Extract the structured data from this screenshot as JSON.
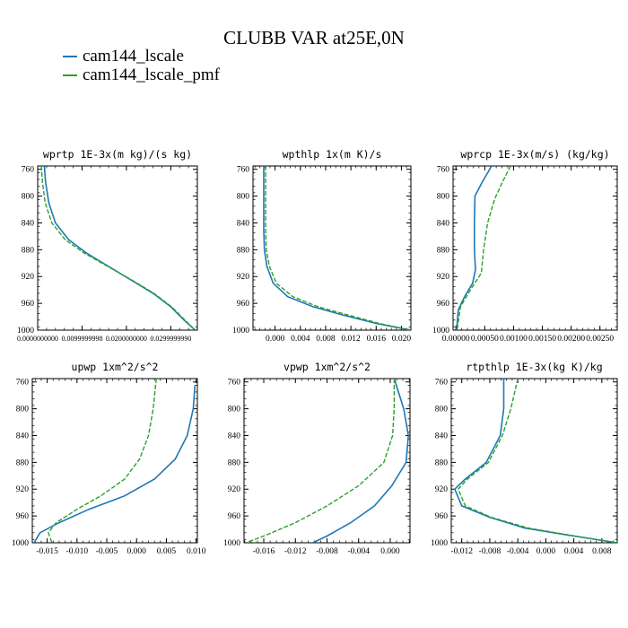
{
  "title": "CLUBB VAR at25E,0N",
  "legend": [
    {
      "name": "cam144_lscale",
      "color": "#1f77b4"
    },
    {
      "name": "cam144_lscale_pmf",
      "color": "#2ca02c"
    }
  ],
  "chart_data": [
    {
      "type": "line",
      "title": "wprtp  1E-3x(m kg)/(s kg)",
      "ylabel": "",
      "ylim": [
        1000,
        755
      ],
      "yticks": [
        760,
        800,
        840,
        880,
        920,
        960,
        1000
      ],
      "xlim": [
        0.0,
        0.036
      ],
      "xticks": [
        0.0,
        0.01,
        0.02,
        0.03
      ],
      "xticklabels": [
        "0.0000000000",
        "0.0099999998",
        "0.0200000000",
        "0.0299999990"
      ],
      "series": [
        {
          "name": "cam144_lscale",
          "points": [
            [
              0.0015,
              755
            ],
            [
              0.0018,
              780
            ],
            [
              0.0025,
              810
            ],
            [
              0.004,
              840
            ],
            [
              0.007,
              865
            ],
            [
              0.011,
              885
            ],
            [
              0.016,
              905
            ],
            [
              0.021,
              925
            ],
            [
              0.026,
              945
            ],
            [
              0.03,
              965
            ],
            [
              0.033,
              985
            ],
            [
              0.0355,
              1000
            ]
          ]
        },
        {
          "name": "cam144_lscale_pmf",
          "points": [
            [
              0.0008,
              755
            ],
            [
              0.0011,
              780
            ],
            [
              0.0017,
              810
            ],
            [
              0.0032,
              840
            ],
            [
              0.0062,
              865
            ],
            [
              0.0105,
              885
            ],
            [
              0.0158,
              905
            ],
            [
              0.0212,
              925
            ],
            [
              0.0262,
              945
            ],
            [
              0.0302,
              965
            ],
            [
              0.0332,
              985
            ],
            [
              0.0355,
              1000
            ]
          ]
        }
      ]
    },
    {
      "type": "line",
      "title": "wpthlp  1x(m K)/s",
      "ylabel": "",
      "ylim": [
        1000,
        755
      ],
      "yticks": [
        760,
        800,
        840,
        880,
        920,
        960,
        1000
      ],
      "xlim": [
        -0.0035,
        0.0215
      ],
      "xticks": [
        0.0,
        0.004,
        0.008,
        0.012,
        0.016,
        0.02
      ],
      "xticklabels": [
        "0.000",
        "0.004",
        "0.008",
        "0.012",
        "0.016",
        "0.020"
      ],
      "series": [
        {
          "name": "cam144_lscale",
          "points": [
            [
              -0.0018,
              755
            ],
            [
              -0.0018,
              800
            ],
            [
              -0.0018,
              850
            ],
            [
              -0.0017,
              880
            ],
            [
              -0.0013,
              905
            ],
            [
              -0.0003,
              930
            ],
            [
              0.002,
              950
            ],
            [
              0.006,
              965
            ],
            [
              0.011,
              978
            ],
            [
              0.016,
              990
            ],
            [
              0.0215,
              1000
            ]
          ]
        },
        {
          "name": "cam144_lscale_pmf",
          "points": [
            [
              -0.0015,
              755
            ],
            [
              -0.0015,
              800
            ],
            [
              -0.0015,
              850
            ],
            [
              -0.0014,
              880
            ],
            [
              -0.0009,
              905
            ],
            [
              0.0002,
              930
            ],
            [
              0.0028,
              950
            ],
            [
              0.0068,
              965
            ],
            [
              0.0118,
              978
            ],
            [
              0.0165,
              990
            ],
            [
              0.0215,
              1000
            ]
          ]
        }
      ]
    },
    {
      "type": "line",
      "title": "wprcp  1E-3x(m/s) (kg/kg)",
      "ylabel": "",
      "ylim": [
        1000,
        755
      ],
      "yticks": [
        760,
        800,
        840,
        880,
        920,
        960,
        1000
      ],
      "xlim": [
        -5e-05,
        0.0028
      ],
      "xticks": [
        0.0,
        0.0005,
        0.001,
        0.0015,
        0.002,
        0.0025
      ],
      "xticklabels": [
        "0.00000",
        "0.00050",
        "0.00100",
        "0.00150",
        "0.00200",
        "0.00250"
      ],
      "series": [
        {
          "name": "cam144_lscale",
          "points": [
            [
              0.00062,
              755
            ],
            [
              0.00045,
              780
            ],
            [
              0.00033,
              800
            ],
            [
              0.00032,
              840
            ],
            [
              0.00032,
              880
            ],
            [
              0.00034,
              910
            ],
            [
              0.00029,
              930
            ],
            [
              0.00015,
              950
            ],
            [
              4e-05,
              970
            ],
            [
              1e-05,
              1000
            ]
          ]
        },
        {
          "name": "cam144_lscale_pmf",
          "points": [
            [
              0.00095,
              755
            ],
            [
              0.0008,
              780
            ],
            [
              0.00067,
              805
            ],
            [
              0.00055,
              840
            ],
            [
              0.00048,
              880
            ],
            [
              0.00044,
              915
            ],
            [
              0.00025,
              940
            ],
            [
              8e-05,
              965
            ],
            [
              2e-05,
              1000
            ]
          ]
        }
      ]
    },
    {
      "type": "line",
      "title": "upwp  1xm^2/s^2",
      "ylabel": "",
      "ylim": [
        1000,
        755
      ],
      "yticks": [
        760,
        800,
        840,
        880,
        920,
        960,
        1000
      ],
      "xlim": [
        -0.0175,
        0.0102
      ],
      "xticks": [
        -0.015,
        -0.01,
        -0.005,
        0.0,
        0.005,
        0.01
      ],
      "xticklabels": [
        "-0.015",
        "-0.010",
        "-0.005",
        "0.000",
        "0.005",
        "0.010"
      ],
      "series": [
        {
          "name": "cam144_lscale",
          "points": [
            [
              0.0098,
              765
            ],
            [
              0.0095,
              800
            ],
            [
              0.0085,
              840
            ],
            [
              0.0065,
              875
            ],
            [
              0.003,
              905
            ],
            [
              -0.002,
              930
            ],
            [
              -0.008,
              950
            ],
            [
              -0.013,
              970
            ],
            [
              -0.0162,
              985
            ],
            [
              -0.0172,
              1000
            ]
          ]
        },
        {
          "name": "cam144_lscale_pmf",
          "points": [
            [
              0.0033,
              755
            ],
            [
              0.0028,
              800
            ],
            [
              0.002,
              840
            ],
            [
              0.0005,
              875
            ],
            [
              -0.002,
              905
            ],
            [
              -0.006,
              930
            ],
            [
              -0.01,
              950
            ],
            [
              -0.0135,
              970
            ],
            [
              -0.0148,
              985
            ],
            [
              -0.0142,
              1000
            ]
          ]
        }
      ]
    },
    {
      "type": "line",
      "title": "vpwp  1xm^2/s^2",
      "ylabel": "",
      "ylim": [
        1000,
        755
      ],
      "yticks": [
        760,
        800,
        840,
        880,
        920,
        960,
        1000
      ],
      "xlim": [
        -0.0185,
        0.0025
      ],
      "xticks": [
        -0.016,
        -0.012,
        -0.008,
        -0.004,
        0.0
      ],
      "xticklabels": [
        "-0.016",
        "-0.012",
        "-0.008",
        "-0.004",
        "0.000"
      ],
      "series": [
        {
          "name": "cam144_lscale",
          "points": [
            [
              0.0005,
              755
            ],
            [
              0.0017,
              800
            ],
            [
              0.0023,
              840
            ],
            [
              0.002,
              880
            ],
            [
              0.0002,
              915
            ],
            [
              -0.002,
              945
            ],
            [
              -0.005,
              970
            ],
            [
              -0.008,
              990
            ],
            [
              -0.0098,
              1000
            ]
          ]
        },
        {
          "name": "cam144_lscale_pmf",
          "points": [
            [
              0.0005,
              755
            ],
            [
              0.0005,
              800
            ],
            [
              0.0003,
              840
            ],
            [
              -0.0008,
              880
            ],
            [
              -0.004,
              915
            ],
            [
              -0.008,
              945
            ],
            [
              -0.012,
              970
            ],
            [
              -0.016,
              990
            ],
            [
              -0.0183,
              1000
            ]
          ]
        }
      ]
    },
    {
      "type": "line",
      "title": "rtpthlp  1E-3x(kg K)/kg",
      "ylabel": "",
      "ylim": [
        1000,
        755
      ],
      "yticks": [
        760,
        800,
        840,
        880,
        920,
        960,
        1000
      ],
      "xlim": [
        -0.0135,
        0.0102
      ],
      "xticks": [
        -0.012,
        -0.008,
        -0.004,
        0.0,
        0.004,
        0.008
      ],
      "xticklabels": [
        "-0.012",
        "-0.008",
        "-0.004",
        "0.000",
        "0.004",
        "0.008"
      ],
      "series": [
        {
          "name": "cam144_lscale",
          "points": [
            [
              -0.006,
              755
            ],
            [
              -0.006,
              800
            ],
            [
              -0.0065,
              840
            ],
            [
              -0.0085,
              880
            ],
            [
              -0.0115,
              905
            ],
            [
              -0.013,
              920
            ],
            [
              -0.012,
              945
            ],
            [
              -0.008,
              962
            ],
            [
              -0.003,
              978
            ],
            [
              0.004,
              990
            ],
            [
              0.0102,
              1000
            ]
          ]
        },
        {
          "name": "cam144_lscale_pmf",
          "points": [
            [
              -0.004,
              755
            ],
            [
              -0.005,
              800
            ],
            [
              -0.0062,
              840
            ],
            [
              -0.0082,
              880
            ],
            [
              -0.0112,
              905
            ],
            [
              -0.0125,
              920
            ],
            [
              -0.0115,
              945
            ],
            [
              -0.0078,
              962
            ],
            [
              -0.0025,
              978
            ],
            [
              0.0042,
              990
            ],
            [
              0.0102,
              1000
            ]
          ]
        }
      ]
    }
  ]
}
